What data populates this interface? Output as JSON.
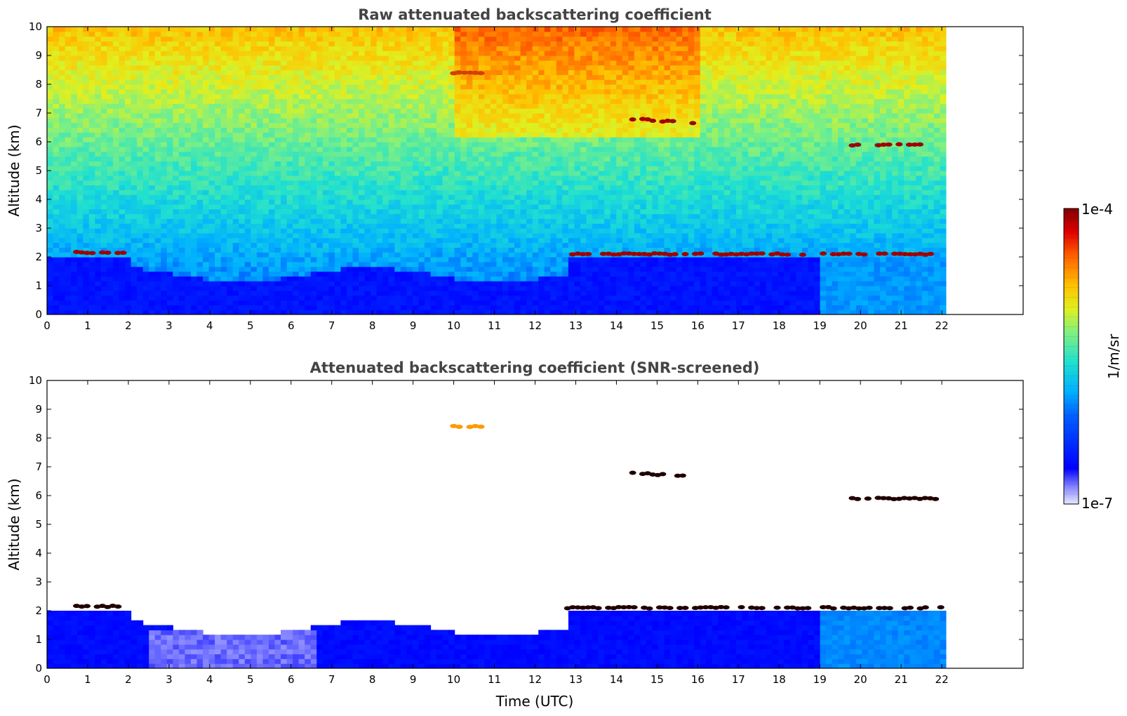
{
  "chart_data": [
    {
      "type": "heatmap",
      "title": "Raw attenuated backscattering coefficient",
      "xlabel": "",
      "ylabel": "Altitude (km)",
      "xlim": [
        0,
        24
      ],
      "ylim": [
        0,
        10
      ],
      "xticks": [
        0,
        1,
        2,
        3,
        4,
        5,
        6,
        7,
        8,
        9,
        10,
        11,
        12,
        13,
        14,
        15,
        16,
        17,
        18,
        19,
        20,
        21,
        22
      ],
      "yticks": [
        0,
        1,
        2,
        3,
        4,
        5,
        6,
        7,
        8,
        9,
        10
      ],
      "data_end_time": 22.1,
      "scale": "log",
      "colormap": "jet",
      "features": [
        {
          "kind": "boundary_layer_top",
          "time_range": [
            0.6,
            2.0
          ],
          "altitude": 2.15
        },
        {
          "kind": "boundary_layer_top",
          "time_range": [
            12.8,
            22.1
          ],
          "altitude": 2.1
        },
        {
          "kind": "cloud_layer",
          "time_range": [
            14.4,
            16.0
          ],
          "altitude": 6.8
        },
        {
          "kind": "cloud_layer",
          "time_range": [
            19.8,
            22.1
          ],
          "altitude": 5.9
        },
        {
          "kind": "aerosol_patch",
          "time_range": [
            10.0,
            10.8
          ],
          "altitude": 8.4
        }
      ]
    },
    {
      "type": "heatmap",
      "title": "Attenuated backscattering coefficient (SNR-screened)",
      "xlabel": "Time (UTC)",
      "ylabel": "Altitude (km)",
      "xlim": [
        0,
        24
      ],
      "ylim": [
        0,
        10
      ],
      "xticks": [
        0,
        1,
        2,
        3,
        4,
        5,
        6,
        7,
        8,
        9,
        10,
        11,
        12,
        13,
        14,
        15,
        16,
        17,
        18,
        19,
        20,
        21,
        22
      ],
      "yticks": [
        0,
        1,
        2,
        3,
        4,
        5,
        6,
        7,
        8,
        9,
        10
      ],
      "data_end_time": 22.1,
      "scale": "log",
      "colormap": "jet",
      "features": [
        {
          "kind": "boundary_layer_top",
          "time_range": [
            0.6,
            2.0
          ],
          "altitude": 2.15
        },
        {
          "kind": "boundary_layer_top",
          "time_range": [
            12.8,
            22.1
          ],
          "altitude": 2.1
        },
        {
          "kind": "cloud_layer",
          "time_range": [
            14.4,
            16.0
          ],
          "altitude": 6.8
        },
        {
          "kind": "cloud_layer",
          "time_range": [
            19.8,
            22.1
          ],
          "altitude": 5.9
        },
        {
          "kind": "aerosol_patch",
          "time_range": [
            10.0,
            10.8
          ],
          "altitude": 8.4
        }
      ]
    }
  ],
  "colorbar": {
    "label": "1/m/sr",
    "max_label": "1e-4",
    "min_label": "1e-7"
  }
}
